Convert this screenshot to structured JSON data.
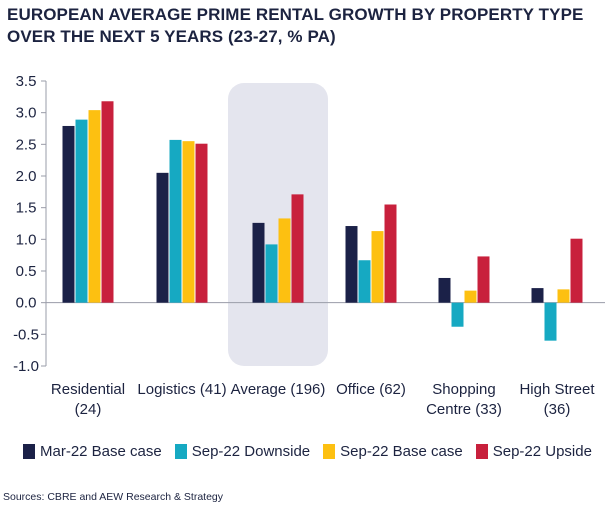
{
  "title": "EUROPEAN AVERAGE PRIME RENTAL GROWTH BY PROPERTY TYPE OVER THE NEXT 5 YEARS (23-27, % PA)",
  "source": "Sources: CBRE and AEW Research & Strategy",
  "colors": {
    "mar22_base": "#1b2148",
    "sep22_down": "#16a9c2",
    "sep22_base": "#fdc011",
    "sep22_up": "#c8203c",
    "highlight": "#e4e5ee",
    "axis": "#9a9ca8",
    "grid": "#d4d6dd",
    "text": "#1c2340"
  },
  "chart_data": {
    "type": "bar",
    "title": "EUROPEAN AVERAGE PRIME RENTAL GROWTH BY PROPERTY TYPE OVER THE NEXT 5 YEARS (23-27, % PA)",
    "categories": [
      [
        "Residential",
        "(24)"
      ],
      [
        "Logistics (41)"
      ],
      [
        "Average (196)"
      ],
      [
        "Office (62)"
      ],
      [
        "Shopping",
        "Centre (33)"
      ],
      [
        "High Street",
        "(36)"
      ]
    ],
    "series": [
      {
        "name": "Mar-22 Base case",
        "color_key": "mar22_base",
        "values": [
          2.79,
          2.05,
          1.26,
          1.21,
          0.39,
          0.23
        ]
      },
      {
        "name": "Sep-22 Downside",
        "color_key": "sep22_down",
        "values": [
          2.89,
          2.57,
          0.92,
          0.67,
          -0.38,
          -0.6
        ]
      },
      {
        "name": "Sep-22 Base case",
        "color_key": "sep22_base",
        "values": [
          3.04,
          2.55,
          1.33,
          1.13,
          0.19,
          0.21
        ]
      },
      {
        "name": "Sep-22 Upside",
        "color_key": "sep22_up",
        "values": [
          3.18,
          2.51,
          1.71,
          1.55,
          0.73,
          1.01
        ]
      }
    ],
    "yticks": [
      "3.5",
      "3.0",
      "2.5",
      "2.0",
      "1.5",
      "1.0",
      "0.5",
      "0.0",
      "-0.5",
      "-1.0"
    ],
    "ylim": [
      -1.0,
      3.5
    ],
    "highlighted_category": "Average (196)",
    "grid": false,
    "legend": "bottom"
  }
}
